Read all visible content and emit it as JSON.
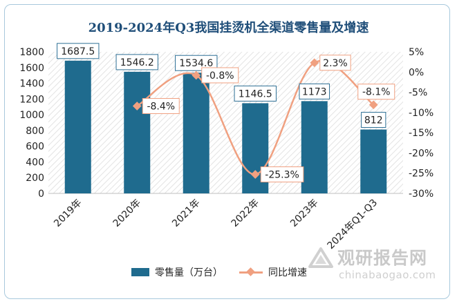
{
  "title": "2019-2024年Q3我国挂烫机全渠道零售量及增速",
  "chart_data": {
    "type": "bar",
    "title": "2019-2024年Q3我国挂烫机全渠道零售量及增速",
    "categories": [
      "2019年",
      "2020年",
      "2021年",
      "2022年",
      "2023年",
      "2024年Q1-Q3"
    ],
    "series": [
      {
        "name": "零售量（万台）",
        "type": "bar",
        "axis": "left",
        "values": [
          1687.5,
          1546.2,
          1534.6,
          1146.5,
          1173,
          812
        ],
        "labels": [
          "1687.5",
          "1546.2",
          "1534.6",
          "1146.5",
          "1173",
          "812"
        ],
        "color": "#1f6b8e"
      },
      {
        "name": "同比增速",
        "type": "line",
        "axis": "right",
        "smooth": true,
        "values": [
          null,
          -8.4,
          -0.8,
          -25.3,
          2.3,
          -8.1
        ],
        "labels": [
          "",
          "-8.4%",
          "-0.8%",
          "-25.3%",
          "2.3%",
          "-8.1%"
        ],
        "color": "#f0a080"
      }
    ],
    "y_left": {
      "min": 0,
      "max": 1800,
      "step": 200,
      "ticks": [
        "0",
        "200",
        "400",
        "600",
        "800",
        "1000",
        "1200",
        "1400",
        "1600",
        "1800"
      ]
    },
    "y_right": {
      "min": -30,
      "max": 5,
      "step": 5,
      "ticks": [
        "-30%",
        "-25%",
        "-20%",
        "-15%",
        "-10%",
        "-5%",
        "0%",
        "5%"
      ]
    },
    "legend_position": "bottom",
    "plot_background": "diagonal-hatch"
  },
  "legend": {
    "bar_label": "零售量（万台）",
    "line_label": "同比增速"
  },
  "watermark": {
    "brand": "观研报告网",
    "url": "chinabaogao.com"
  },
  "colors": {
    "bar": "#1f6b8e",
    "line": "#f0a080",
    "title": "#1f4e79",
    "label_border_bar": "#2d6f95",
    "label_border_line": "#f0a080"
  }
}
